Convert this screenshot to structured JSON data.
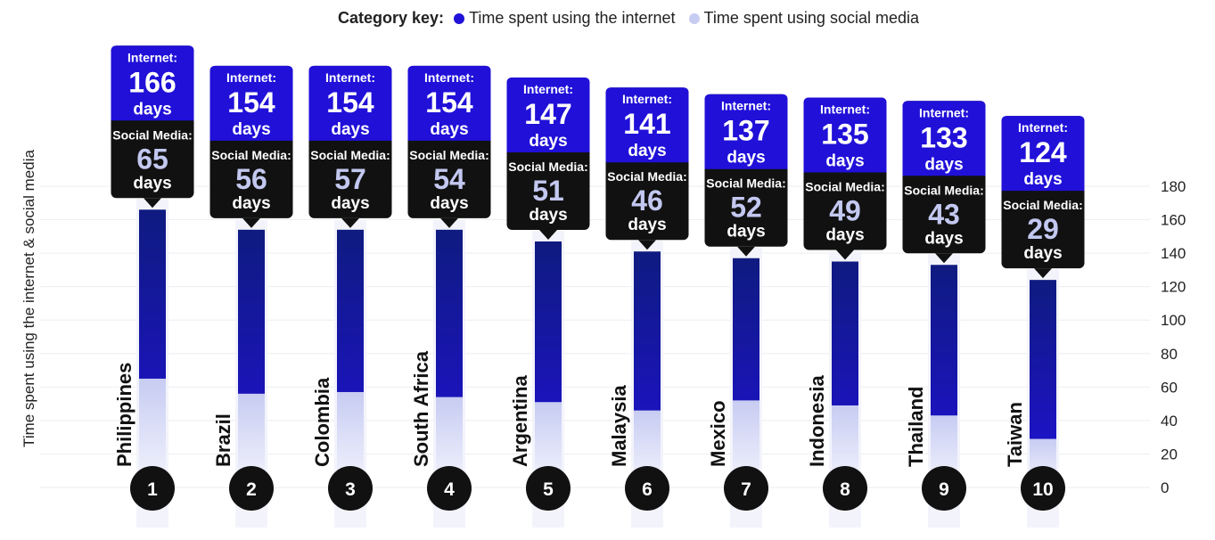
{
  "colors": {
    "internet": "#2010d8",
    "internet_dark": "#0f1b80",
    "social": "#c7ccf2",
    "callout_dark": "#111111",
    "grid": "#eceef2"
  },
  "legend": {
    "key_label": "Category key:",
    "internet_label": "Time spent using the internet",
    "social_label": "Time spent using social media"
  },
  "chart_data": {
    "type": "bar",
    "ylabel": "Time spent using the internet & social media",
    "ylim": [
      0,
      180
    ],
    "yticks": [
      0,
      20,
      40,
      60,
      80,
      100,
      120,
      140,
      160,
      180
    ],
    "categories": [
      "Philippines",
      "Brazil",
      "Colombia",
      "South Africa",
      "Argentina",
      "Malaysia",
      "Mexico",
      "Indonesia",
      "Thailand",
      "Taiwan"
    ],
    "ranks": [
      "1",
      "2",
      "3",
      "4",
      "5",
      "6",
      "7",
      "8",
      "9",
      "10"
    ],
    "callout_internet_label": "Internet:",
    "callout_social_label": "Social Media:",
    "unit_label": "days",
    "series": [
      {
        "name": "Time spent using the internet",
        "values": [
          166,
          154,
          154,
          154,
          147,
          141,
          137,
          135,
          133,
          124
        ]
      },
      {
        "name": "Time spent using social media",
        "values": [
          65,
          56,
          57,
          54,
          51,
          46,
          52,
          49,
          43,
          29
        ]
      }
    ],
    "grid": true,
    "legend_position": "top-center"
  }
}
